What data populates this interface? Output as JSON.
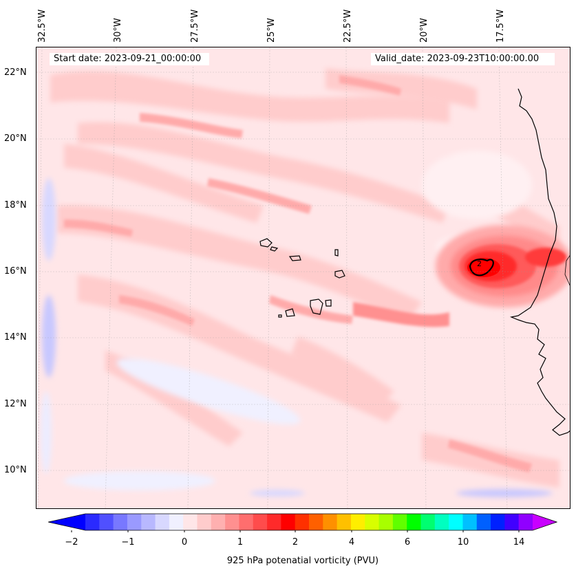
{
  "map": {
    "start_date": "Start date: 2023-09-21_00:00:00",
    "valid_date": "Valid_date: 2023-09-23T10:00:00.00",
    "lon_labels": [
      "32.5°W",
      "30°W",
      "27.5°W",
      "25°W",
      "22.5°W",
      "20°W",
      "17.5°W"
    ],
    "lat_labels": [
      "22°N",
      "20°N",
      "18°N",
      "16°N",
      "14°N",
      "12°N",
      "10°N"
    ],
    "contour_label": "2",
    "field_description": "925 hPa potenatial vorticity (PVU)"
  },
  "colorbar": {
    "title": "925 hPa potenatial vorticity (PVU)",
    "tick_labels": [
      "−2",
      "−1",
      "0",
      "1",
      "2",
      "4",
      "6",
      "10",
      "14"
    ],
    "colors": [
      "#0000ff",
      "#2a2aff",
      "#5050ff",
      "#7878ff",
      "#9a9aff",
      "#b8b8ff",
      "#d8d8ff",
      "#f0f0ff",
      "#ffe6e8",
      "#ffcccc",
      "#ffb0b0",
      "#ff9090",
      "#ff6e6e",
      "#ff4c4c",
      "#ff2a2a",
      "#ff0000",
      "#ff3000",
      "#ff6000",
      "#ff9000",
      "#ffc000",
      "#ffee00",
      "#d8ff00",
      "#a8ff00",
      "#60ff00",
      "#00ff00",
      "#00ff70",
      "#00ffc0",
      "#00ffff",
      "#00c0ff",
      "#0060ff",
      "#0020ff",
      "#4000ff",
      "#9000ff",
      "#c800ff"
    ]
  }
}
